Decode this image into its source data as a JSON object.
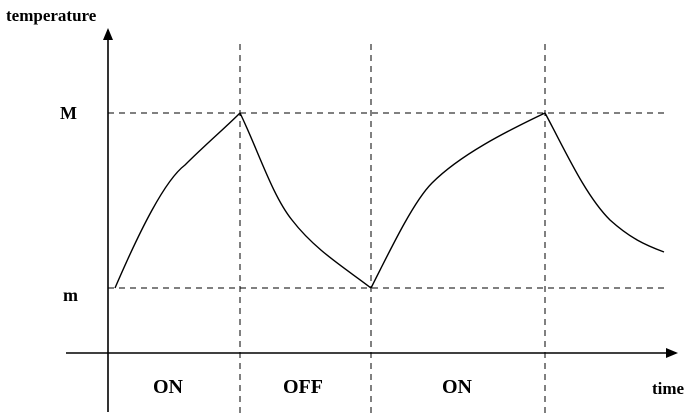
{
  "diagram": {
    "y_axis_label": "temperature",
    "x_axis_label": "time",
    "level_high_label": "M",
    "level_low_label": "m",
    "phases": [
      "ON",
      "OFF",
      "ON"
    ]
  }
}
